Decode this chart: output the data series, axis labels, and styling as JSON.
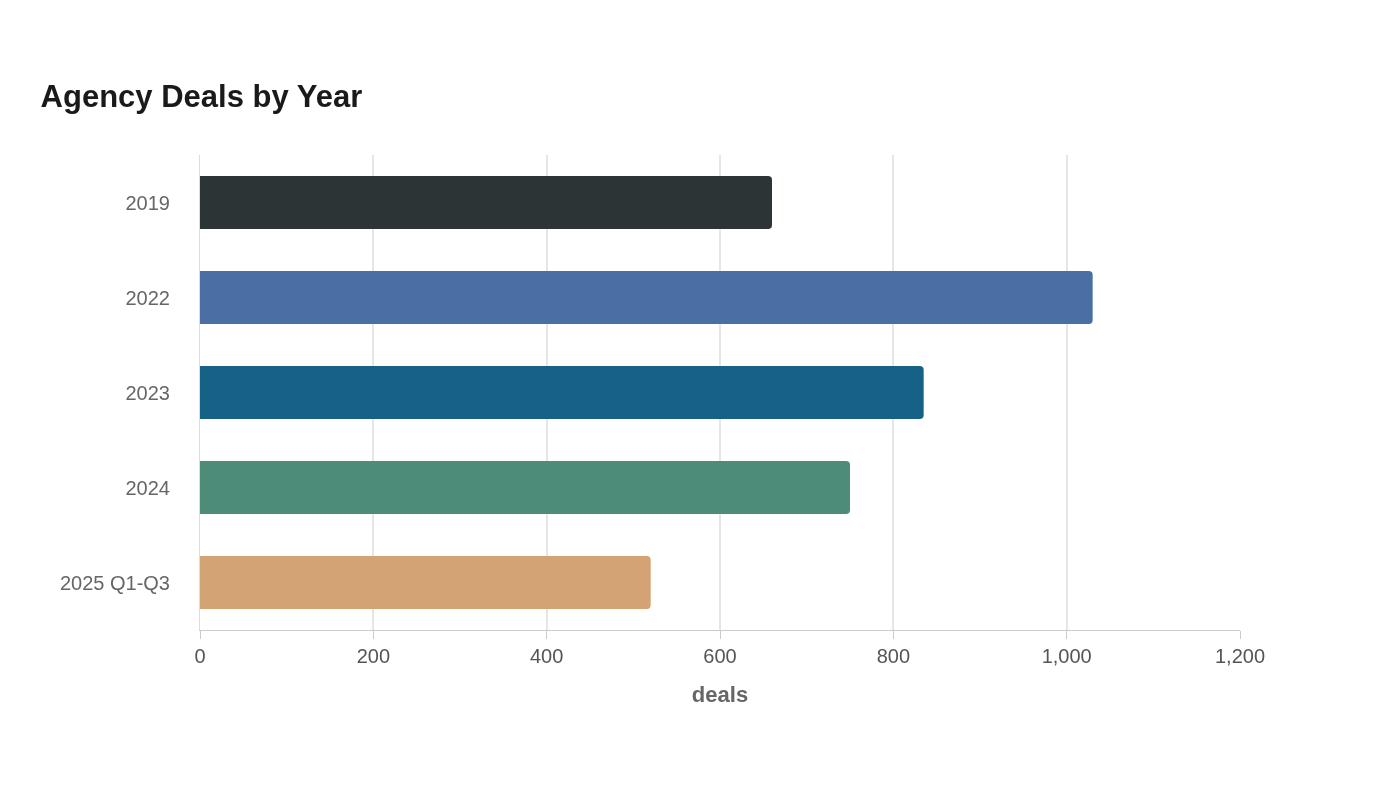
{
  "chart_data": {
    "type": "bar",
    "orientation": "horizontal",
    "title": "Agency Deals by Year",
    "xlabel": "deals",
    "categories": [
      "2019",
      "2022",
      "2023",
      "2024",
      "2025 Q1-Q3"
    ],
    "values": [
      660,
      1030,
      835,
      750,
      520
    ],
    "colors": [
      "#2d3436",
      "#4a6fa5",
      "#166186",
      "#4e8c7a",
      "#d4a373"
    ],
    "xlim": [
      0,
      1200
    ],
    "xticks": [
      0,
      200,
      400,
      600,
      800,
      {
        "value": 1000,
        "label": "1,000"
      },
      {
        "value": 1200,
        "label": "1,200"
      }
    ],
    "grid": "x"
  }
}
